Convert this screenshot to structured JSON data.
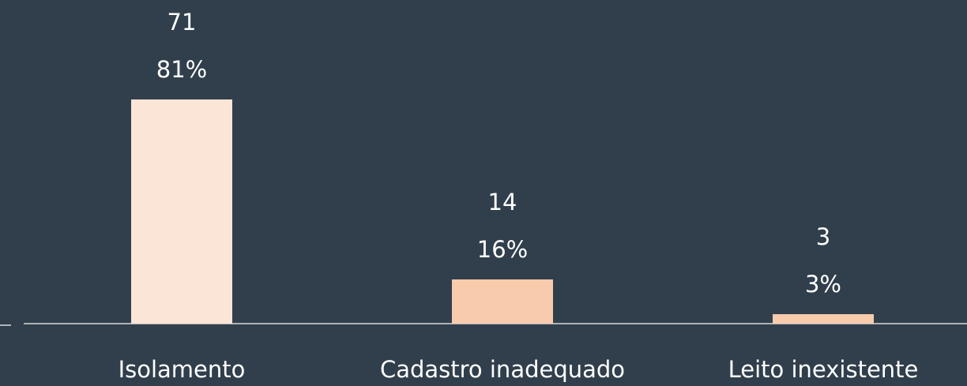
{
  "chart_data": {
    "type": "bar",
    "categories": [
      "Isolamento",
      "Cadastro inadequado",
      "Leito inexistente"
    ],
    "values": [
      71,
      14,
      3
    ],
    "colors": [
      "#fbe5d6",
      "#f8cbad",
      "#f8cbad"
    ],
    "percentages": {
      "values": [
        81,
        16,
        3
      ],
      "value_labels": [
        "81%",
        "16%",
        "3%"
      ]
    },
    "ylim": [
      0,
      100
    ]
  }
}
